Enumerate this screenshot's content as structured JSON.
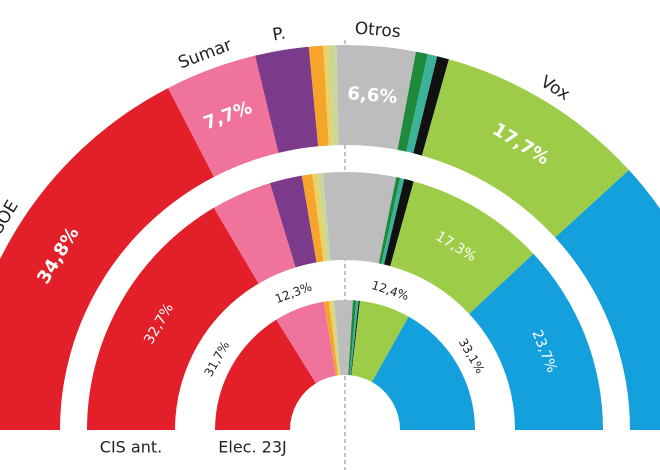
{
  "chart_data": {
    "type": "semidonut",
    "categories": [
      "PSOE",
      "Sumar",
      "P.",
      null,
      null,
      null,
      "Otros",
      null,
      null,
      null,
      "Vox",
      null
    ],
    "colors": [
      "#e3202a",
      "#f0739b",
      "#7b3a8a",
      "#f6a52a",
      "#e6d36a",
      "#c8d89a",
      "#bdbdbd",
      "#1e8a3c",
      "#3bb39a",
      "#111111",
      "#9dcd48",
      "#14a0dc"
    ],
    "series": [
      {
        "values": [
          34.8,
          7.7,
          4.5,
          1.2,
          0.5,
          0.6,
          6.6,
          1.0,
          0.8,
          1.0,
          17.7,
          23.6
        ],
        "value_labels": [
          "34,8%",
          "7,7%",
          null,
          null,
          null,
          null,
          "6,6%",
          null,
          null,
          null,
          "17,7%",
          null
        ]
      },
      {
        "name": "CIS ant.",
        "values": [
          32.7,
          7.5,
          4.0,
          1.3,
          0.7,
          0.6,
          9.0,
          0.5,
          0.5,
          1.2,
          17.3,
          23.7
        ],
        "value_labels": [
          "32,7%",
          null,
          null,
          null,
          null,
          null,
          null,
          null,
          null,
          null,
          "17,3%",
          "23,7%"
        ]
      },
      {
        "name": "Elec. 23J",
        "values": [
          31.7,
          12.3,
          0,
          1.2,
          0.8,
          0.5,
          4.5,
          0.8,
          0.6,
          0.3,
          12.4,
          33.1
        ],
        "value_labels": [
          "31,7%",
          "12,3%",
          null,
          null,
          null,
          null,
          null,
          null,
          null,
          null,
          "12,4%",
          "33,1%"
        ]
      }
    ]
  }
}
